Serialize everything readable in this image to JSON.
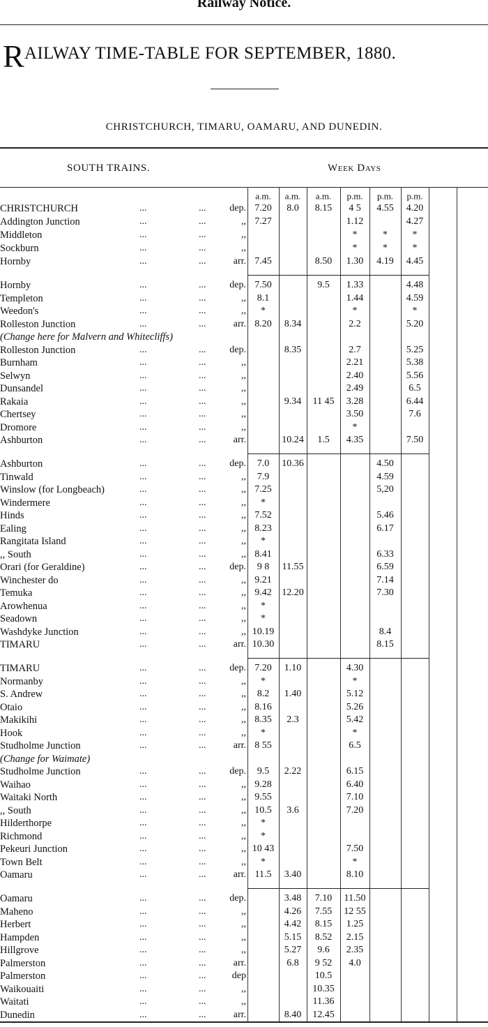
{
  "header": {
    "masthead": "Railway Notice.",
    "title": "RAILWAY TIME-TABLE FOR SEPTEMBER, 1880.",
    "route": "CHRISTCHURCH, TIMARU, OAMARU, AND DUNEDIN.",
    "direction": "SOUTH TRAINS.",
    "days": "Week Days"
  },
  "table": {
    "columns": [
      "a.m.",
      "a.m.",
      "a.m.",
      "p.m.",
      "p.m.",
      "p.m."
    ],
    "leader": "...",
    "sections": [
      {
        "rows": [
          {
            "station": "CHRISTCHURCH",
            "mark": "dep.",
            "times": [
              "7.20",
              "8.0",
              "8.15",
              "4 5",
              "4.55",
              "4.20"
            ]
          },
          {
            "station": "Addington Junction",
            "mark": ",,",
            "times": [
              "7.27",
              null,
              null,
              "1.12",
              null,
              "4.27"
            ]
          },
          {
            "station": "Middleton",
            "mark": ",,",
            "times": [
              null,
              null,
              null,
              "*",
              "*",
              "*"
            ]
          },
          {
            "station": "Sockburn",
            "mark": ",,",
            "times": [
              null,
              null,
              null,
              "*",
              "*",
              "*"
            ]
          },
          {
            "station": "Hornby",
            "mark": "arr.",
            "times": [
              "7.45",
              null,
              "8.50",
              "1.30",
              "4.19",
              "4.45"
            ]
          }
        ]
      },
      {
        "rows": [
          {
            "station": "Hornby",
            "mark": "dep.",
            "times": [
              "7.50",
              null,
              "9.5",
              "1.33",
              null,
              "4.48"
            ]
          },
          {
            "station": "Templeton",
            "mark": ",,",
            "times": [
              "8.1",
              null,
              null,
              "1.44",
              null,
              "4.59"
            ]
          },
          {
            "station": "Weedon's",
            "mark": ",,",
            "times": [
              "*",
              null,
              null,
              "*",
              null,
              "*"
            ]
          },
          {
            "station": "Rolleston Junction",
            "mark": "arr.",
            "times": [
              "8.20",
              "8.34",
              null,
              "2.2",
              null,
              "5.20"
            ]
          },
          {
            "note": "(Change here for Malvern and Whitecliffs)"
          },
          {
            "station": "Rolleston Junction",
            "mark": "dep.",
            "times": [
              null,
              "8.35",
              null,
              "2.7",
              null,
              "5.25"
            ]
          },
          {
            "station": "Burnham",
            "mark": ",,",
            "times": [
              null,
              null,
              null,
              "2.21",
              null,
              "5.38"
            ]
          },
          {
            "station": "Selwyn",
            "mark": ",,",
            "times": [
              null,
              null,
              null,
              "2.40",
              null,
              "5.56"
            ]
          },
          {
            "station": "Dunsandel",
            "mark": ",,",
            "times": [
              null,
              null,
              null,
              "2.49",
              null,
              "6.5"
            ]
          },
          {
            "station": "Rakaia",
            "mark": ",,",
            "times": [
              null,
              "9.34",
              "11 45",
              "3.28",
              null,
              "6.44"
            ]
          },
          {
            "station": "Chertsey",
            "mark": ",,",
            "times": [
              null,
              null,
              null,
              "3.50",
              null,
              "7.6"
            ]
          },
          {
            "station": "Dromore",
            "mark": ",,",
            "times": [
              null,
              null,
              null,
              "*",
              null,
              null
            ]
          },
          {
            "station": "Ashburton",
            "mark": "arr.",
            "times": [
              null,
              "10.24",
              "1.5",
              "4.35",
              null,
              "7.50"
            ]
          }
        ]
      },
      {
        "rows": [
          {
            "station": "Ashburton",
            "mark": "dep.",
            "times": [
              "7.0",
              "10.36",
              null,
              null,
              "4.50",
              null
            ]
          },
          {
            "station": "Tinwald",
            "mark": ",,",
            "times": [
              "7.9",
              null,
              null,
              null,
              "4.59",
              null
            ]
          },
          {
            "station": "Winslow (for Longbeach)",
            "mark": ",,",
            "times": [
              "7.25",
              null,
              null,
              null,
              "5,20",
              null
            ]
          },
          {
            "station": "Windermere",
            "mark": ",,",
            "times": [
              "*",
              null,
              null,
              null,
              null,
              null
            ]
          },
          {
            "station": "Hinds",
            "mark": ",,",
            "times": [
              "7.52",
              null,
              null,
              null,
              "5.46",
              null
            ]
          },
          {
            "station": "Ealing",
            "mark": ",,",
            "times": [
              "8.23",
              null,
              null,
              null,
              "6.17",
              null
            ]
          },
          {
            "station": "Rangitata Island",
            "mark": ",,",
            "times": [
              "*",
              null,
              null,
              null,
              null,
              null
            ]
          },
          {
            "station": ",,   South",
            "mark": ",,",
            "times": [
              "8.41",
              null,
              null,
              null,
              "6.33",
              null
            ]
          },
          {
            "station": "Orari (for Geraldine)",
            "mark": "dep.",
            "times": [
              "9 8",
              "11.55",
              null,
              null,
              "6.59",
              null
            ]
          },
          {
            "station": "Winchester do",
            "mark": ",,",
            "times": [
              "9.21",
              null,
              null,
              null,
              "7.14",
              null
            ]
          },
          {
            "station": "Temuka",
            "mark": ",,",
            "times": [
              "9.42",
              "12.20",
              null,
              null,
              "7.30",
              null
            ]
          },
          {
            "station": "Arowhenua",
            "mark": ",,",
            "times": [
              "*",
              null,
              null,
              null,
              null,
              null
            ]
          },
          {
            "station": "Seadown",
            "mark": ",,",
            "times": [
              "*",
              null,
              null,
              null,
              null,
              null
            ]
          },
          {
            "station": "Washdyke Junction",
            "mark": ",,",
            "times": [
              "10.19",
              null,
              null,
              null,
              "8.4",
              null
            ]
          },
          {
            "station": "TIMARU",
            "mark": "arr.",
            "times": [
              "10.30",
              null,
              null,
              null,
              "8.15",
              null
            ]
          }
        ]
      },
      {
        "rows": [
          {
            "station": "TIMARU",
            "mark": "dep.",
            "times": [
              "7.20",
              "1.10",
              null,
              "4.30",
              null,
              null
            ]
          },
          {
            "station": "Normanby",
            "mark": ",,",
            "times": [
              "*",
              null,
              null,
              "*",
              null,
              null
            ]
          },
          {
            "station": "S. Andrew",
            "mark": ",,",
            "times": [
              "8.2",
              "1.40",
              null,
              "5.12",
              null,
              null
            ]
          },
          {
            "station": "Otaio",
            "mark": ",,",
            "times": [
              "8.16",
              null,
              null,
              "5.26",
              null,
              null
            ]
          },
          {
            "station": "Makikihi",
            "mark": ",,",
            "times": [
              "8.35",
              "2.3",
              null,
              "5.42",
              null,
              null
            ]
          },
          {
            "station": "Hook",
            "mark": ",,",
            "times": [
              "*",
              null,
              null,
              "*",
              null,
              null
            ]
          },
          {
            "station": "Studholme Junction",
            "mark": "arr.",
            "times": [
              "8 55",
              null,
              null,
              "6.5",
              null,
              null
            ]
          },
          {
            "note": "(Change for Waimate)"
          },
          {
            "station": "Studholme Junction",
            "mark": "dep.",
            "times": [
              "9.5",
              "2.22",
              null,
              "6.15",
              null,
              null
            ]
          },
          {
            "station": "Waihao",
            "mark": ",,",
            "times": [
              "9.28",
              null,
              null,
              "6.40",
              null,
              null
            ]
          },
          {
            "station": "Waitaki North",
            "mark": ",,",
            "times": [
              "9.55",
              null,
              null,
              "7.10",
              null,
              null
            ]
          },
          {
            "station": ",,   South",
            "mark": ",,",
            "times": [
              "10.5",
              "3.6",
              null,
              "7.20",
              null,
              null
            ]
          },
          {
            "station": "Hilderthorpe",
            "mark": ",,",
            "times": [
              "*",
              null,
              null,
              null,
              null,
              null
            ]
          },
          {
            "station": "Richmond",
            "mark": ",,",
            "times": [
              "*",
              null,
              null,
              null,
              null,
              null
            ]
          },
          {
            "station": "Pekeuri Junction",
            "mark": ",,",
            "times": [
              "10 43",
              null,
              null,
              "7.50",
              null,
              null
            ]
          },
          {
            "station": "Town Belt",
            "mark": ",,",
            "times": [
              "*",
              null,
              null,
              "*",
              null,
              null
            ]
          },
          {
            "station": "Oamaru",
            "mark": "arr.",
            "times": [
              "11.5",
              "3.40",
              null,
              "8.10",
              null,
              null
            ]
          }
        ]
      },
      {
        "rows": [
          {
            "station": "Oamaru",
            "mark": "dep.",
            "times": [
              null,
              "3.48",
              "7.10",
              "11.50",
              null,
              null
            ]
          },
          {
            "station": "Maheno",
            "mark": ",,",
            "times": [
              null,
              "4.26",
              "7.55",
              "12 55",
              null,
              null
            ]
          },
          {
            "station": "Herbert",
            "mark": ",,",
            "times": [
              null,
              "4.42",
              "8.15",
              "1.25",
              null,
              null
            ]
          },
          {
            "station": "Hampden",
            "mark": ",,",
            "times": [
              null,
              "5.15",
              "8.52",
              "2.15",
              null,
              null
            ]
          },
          {
            "station": "Hillgrove",
            "mark": ",,",
            "times": [
              null,
              "5.27",
              "9.6",
              "2.35",
              null,
              null
            ]
          },
          {
            "station": "Palmerston",
            "mark": "arr.",
            "times": [
              null,
              "6.8",
              "9 52",
              "4.0",
              null,
              null
            ]
          },
          {
            "station": "Palmerston",
            "mark": "dep",
            "times": [
              null,
              null,
              "10.5",
              null,
              null,
              null
            ]
          },
          {
            "station": "Waikouaiti",
            "mark": ",,",
            "times": [
              null,
              null,
              "10.35",
              null,
              null,
              null
            ]
          },
          {
            "station": "Waitati",
            "mark": ",,",
            "times": [
              null,
              null,
              "11.36",
              null,
              null,
              null
            ]
          },
          {
            "station": "Dunedin",
            "mark": "arr.",
            "times": [
              null,
              "8.40",
              "12.45",
              null,
              null,
              null
            ]
          }
        ]
      }
    ]
  }
}
